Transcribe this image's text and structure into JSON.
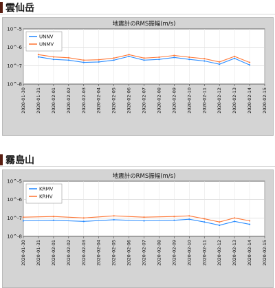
{
  "sections": [
    {
      "title": "雲仙岳",
      "chart_data": {
        "type": "line",
        "title": "地震計のRMS振幅(m/s)",
        "y_scale": "log",
        "ylim": [
          1e-08,
          1e-05
        ],
        "y_tick_labels": [
          "10^-5",
          "10^-6",
          "10^-7",
          "10^-8"
        ],
        "x_tick_labels": [
          "2020-01-30",
          "2020-01-31",
          "2020-02-01",
          "2020-02-02",
          "2020-02-03",
          "2020-02-04",
          "2020-02-05",
          "2020-02-06",
          "2020-02-07",
          "2020-02-08",
          "2020-02-09",
          "2020-02-10",
          "2020-02-11",
          "2020-02-12",
          "2020-02-13",
          "2020-02-14",
          "2020-02-15"
        ],
        "xlim": [
          "2020-01-30",
          "2020-02-15"
        ],
        "grid": true,
        "legend_position": "top-left",
        "series": [
          {
            "name": "UNNV",
            "color": "#2a8cff",
            "x": [
              "2020-01-31",
              "2020-02-01",
              "2020-02-02",
              "2020-02-03",
              "2020-02-04",
              "2020-02-05",
              "2020-02-06",
              "2020-02-07",
              "2020-02-08",
              "2020-02-09",
              "2020-02-10",
              "2020-02-11",
              "2020-02-12",
              "2020-02-13",
              "2020-02-14"
            ],
            "y": [
              3e-07,
              2.2e-07,
              2e-07,
              1.5e-07,
              1.6e-07,
              2e-07,
              3.2e-07,
              2e-07,
              2.2e-07,
              2.8e-07,
              2.2e-07,
              1.8e-07,
              1.2e-07,
              2.5e-07,
              1.1e-07
            ]
          },
          {
            "name": "UNMV",
            "color": "#ff7a3a",
            "x": [
              "2020-01-31",
              "2020-02-01",
              "2020-02-02",
              "2020-02-03",
              "2020-02-04",
              "2020-02-05",
              "2020-02-06",
              "2020-02-07",
              "2020-02-08",
              "2020-02-09",
              "2020-02-10",
              "2020-02-11",
              "2020-02-12",
              "2020-02-13",
              "2020-02-14"
            ],
            "y": [
              4e-07,
              3e-07,
              2.7e-07,
              2e-07,
              2.1e-07,
              2.6e-07,
              4e-07,
              2.6e-07,
              2.9e-07,
              3.6e-07,
              2.9e-07,
              2.4e-07,
              1.6e-07,
              3.2e-07,
              1.5e-07
            ]
          }
        ]
      }
    },
    {
      "title": "霧島山",
      "chart_data": {
        "type": "line",
        "title": "地震計のRMS振幅(m/s)",
        "y_scale": "log",
        "ylim": [
          1e-08,
          1e-05
        ],
        "y_tick_labels": [
          "10^-5",
          "10^-6",
          "10^-7",
          "10^-8"
        ],
        "x_tick_labels": [
          "2020-01-30",
          "2020-01-31",
          "2020-02-01",
          "2020-02-02",
          "2020-02-03",
          "2020-02-04",
          "2020-02-05",
          "2020-02-06",
          "2020-02-07",
          "2020-02-08",
          "2020-02-09",
          "2020-02-10",
          "2020-02-11",
          "2020-02-12",
          "2020-02-13",
          "2020-02-14",
          "2020-02-15"
        ],
        "xlim": [
          "2020-01-30",
          "2020-02-15"
        ],
        "grid": true,
        "legend_position": "top-left",
        "series": [
          {
            "name": "KRMV",
            "color": "#2a8cff",
            "x": [
              "2020-01-30",
              "2020-02-01",
              "2020-02-03",
              "2020-02-05",
              "2020-02-07",
              "2020-02-09",
              "2020-02-10",
              "2020-02-11",
              "2020-02-12",
              "2020-02-13",
              "2020-02-14"
            ],
            "y": [
              7e-08,
              7.5e-08,
              6.5e-08,
              8e-08,
              7e-08,
              7.5e-08,
              8.5e-08,
              6e-08,
              4e-08,
              6.5e-08,
              4.5e-08
            ]
          },
          {
            "name": "KRHV",
            "color": "#ff7a3a",
            "x": [
              "2020-01-30",
              "2020-02-01",
              "2020-02-03",
              "2020-02-05",
              "2020-02-07",
              "2020-02-09",
              "2020-02-10",
              "2020-02-11",
              "2020-02-12",
              "2020-02-13",
              "2020-02-14"
            ],
            "y": [
              1.1e-07,
              1.2e-07,
              1e-07,
              1.3e-07,
              1.1e-07,
              1.2e-07,
              1.3e-07,
              9e-08,
              6e-08,
              1e-07,
              7e-08
            ]
          }
        ]
      }
    }
  ]
}
